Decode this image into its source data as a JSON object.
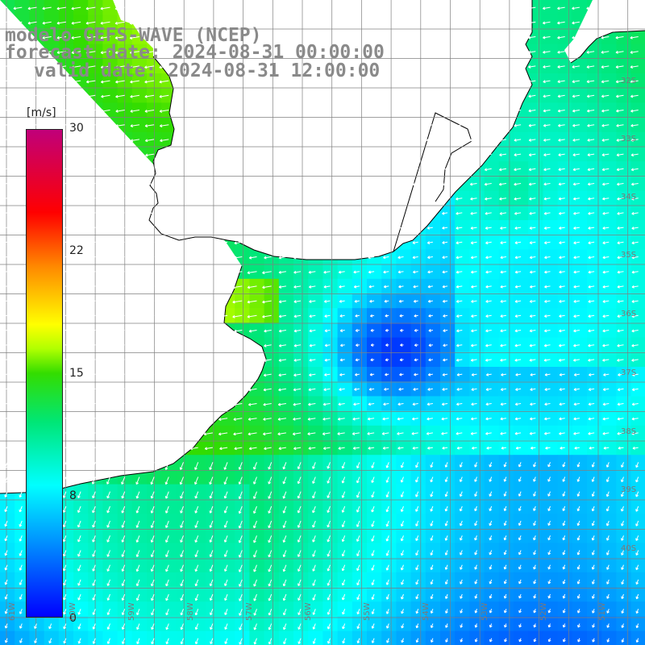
{
  "title": {
    "line1": "modelo GEFS-WAVE (NCEP)",
    "line2": "forecast date: 2024-08-31 00:00:00",
    "line3": "valid date: 2024-08-31 12:00:00"
  },
  "colorbar": {
    "unit": "[m/s]",
    "min": 0,
    "max": 30,
    "ticks": [
      "30",
      "22",
      "15",
      "8",
      "0"
    ],
    "tick_values": [
      30,
      22,
      15,
      8,
      0
    ],
    "colors": [
      "#0000ff",
      "#00ccff",
      "#00ffcc",
      "#00e600",
      "#99ff00",
      "#ffff00",
      "#ff8800",
      "#ff0000",
      "#cc0066"
    ]
  },
  "map": {
    "lat_labels": [
      "32S",
      "33S",
      "34S",
      "35S",
      "36S",
      "37S",
      "38S",
      "39S",
      "40S"
    ],
    "lon_labels": [
      "61W",
      "60W",
      "59W",
      "58W",
      "57W",
      "56W",
      "55W",
      "54W",
      "53W",
      "52W",
      "51W"
    ],
    "land_color": "#ffffff",
    "grid_color": "#808080",
    "coast_color": "#000000",
    "arrow_color": "#ffffff"
  }
}
